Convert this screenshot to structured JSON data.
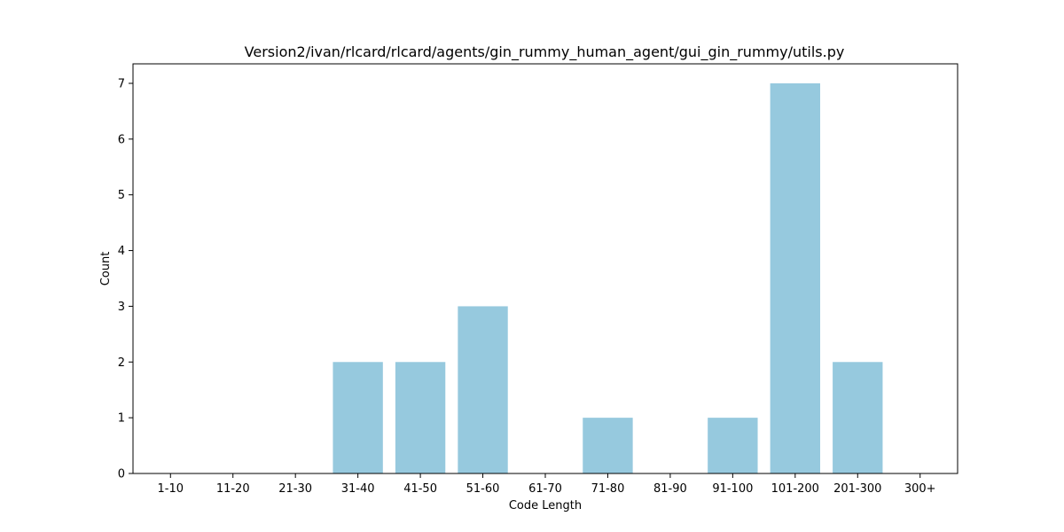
{
  "chart_data": {
    "type": "bar",
    "title": "Version2/ivan/rlcard/rlcard/agents/gin_rummy_human_agent/gui_gin_rummy/utils.py",
    "xlabel": "Code Length",
    "ylabel": "Count",
    "categories": [
      "1-10",
      "11-20",
      "21-30",
      "31-40",
      "41-50",
      "51-60",
      "61-70",
      "71-80",
      "81-90",
      "91-100",
      "101-200",
      "201-300",
      "300+"
    ],
    "values": [
      0,
      0,
      0,
      2,
      2,
      3,
      0,
      1,
      0,
      1,
      7,
      2,
      0
    ],
    "ylim": [
      0,
      7.35
    ],
    "yticks": [
      0,
      1,
      2,
      3,
      4,
      5,
      6,
      7
    ],
    "bar_color": "#96c9de",
    "grid": false,
    "legend": "none"
  }
}
